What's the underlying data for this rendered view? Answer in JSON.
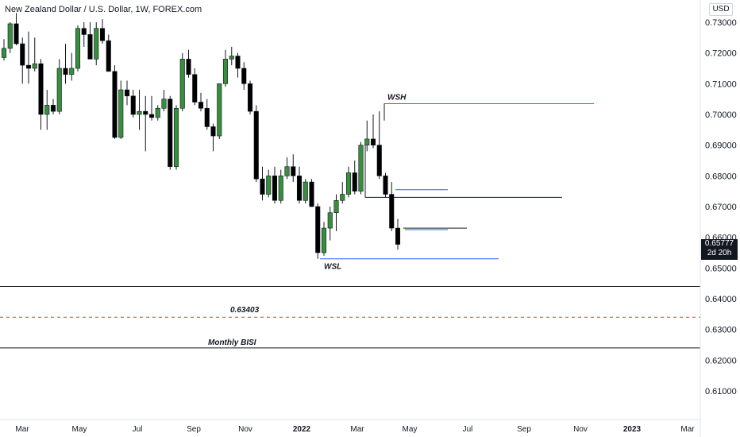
{
  "header": {
    "title": "New Zealand Dollar / U.S. Dollar, 1W, FOREX.com"
  },
  "currency_label": "USD",
  "last_price": {
    "value": "0.65777",
    "countdown": "2d 20h"
  },
  "chart_data": {
    "type": "candlestick",
    "title": "New Zealand Dollar / U.S. Dollar, 1W, FOREX.com",
    "ylim": [
      0.605,
      0.735
    ],
    "y_ticks": [
      "0.73000",
      "0.72000",
      "0.71000",
      "0.70000",
      "0.69000",
      "0.68000",
      "0.67000",
      "0.66000",
      "0.65000",
      "0.64000",
      "0.63000",
      "0.62000",
      "0.61000"
    ],
    "y_tick_values": [
      0.73,
      0.72,
      0.71,
      0.7,
      0.69,
      0.68,
      0.67,
      0.66,
      0.65,
      0.64,
      0.63,
      0.62,
      0.61
    ],
    "x_ticks": [
      {
        "label": "Mar",
        "bold": false
      },
      {
        "label": "May",
        "bold": false
      },
      {
        "label": "Jul",
        "bold": false
      },
      {
        "label": "Sep",
        "bold": false
      },
      {
        "label": "Nov",
        "bold": false
      },
      {
        "label": "2022",
        "bold": true
      },
      {
        "label": "Mar",
        "bold": false
      },
      {
        "label": "May",
        "bold": false
      },
      {
        "label": "Jul",
        "bold": false
      },
      {
        "label": "Sep",
        "bold": false
      },
      {
        "label": "Nov",
        "bold": false
      },
      {
        "label": "2023",
        "bold": true
      },
      {
        "label": "Mar",
        "bold": false
      }
    ],
    "candles": [
      [
        0.7185,
        0.7245,
        0.7175,
        0.7215
      ],
      [
        0.7215,
        0.73,
        0.72,
        0.7295
      ],
      [
        0.7295,
        0.733,
        0.7225,
        0.723
      ],
      [
        0.723,
        0.725,
        0.71,
        0.716
      ],
      [
        0.716,
        0.727,
        0.71,
        0.715
      ],
      [
        0.715,
        0.725,
        0.714,
        0.7165
      ],
      [
        0.7165,
        0.718,
        0.695,
        0.7
      ],
      [
        0.7,
        0.708,
        0.695,
        0.703
      ],
      [
        0.703,
        0.705,
        0.7,
        0.701
      ],
      [
        0.701,
        0.718,
        0.7,
        0.715
      ],
      [
        0.715,
        0.723,
        0.71,
        0.713
      ],
      [
        0.713,
        0.72,
        0.711,
        0.715
      ],
      [
        0.715,
        0.729,
        0.714,
        0.728
      ],
      [
        0.728,
        0.73,
        0.722,
        0.726
      ],
      [
        0.726,
        0.73,
        0.718,
        0.718
      ],
      [
        0.718,
        0.73,
        0.716,
        0.728
      ],
      [
        0.728,
        0.731,
        0.723,
        0.724
      ],
      [
        0.724,
        0.726,
        0.714,
        0.714
      ],
      [
        0.714,
        0.716,
        0.692,
        0.6925
      ],
      [
        0.6925,
        0.711,
        0.692,
        0.708
      ],
      [
        0.708,
        0.711,
        0.703,
        0.706
      ],
      [
        0.706,
        0.708,
        0.699,
        0.7
      ],
      [
        0.7,
        0.708,
        0.695,
        0.701
      ],
      [
        0.701,
        0.706,
        0.688,
        0.7
      ],
      [
        0.7,
        0.706,
        0.698,
        0.699
      ],
      [
        0.699,
        0.703,
        0.698,
        0.702
      ],
      [
        0.702,
        0.708,
        0.701,
        0.705
      ],
      [
        0.705,
        0.706,
        0.682,
        0.683
      ],
      [
        0.683,
        0.703,
        0.682,
        0.702
      ],
      [
        0.702,
        0.72,
        0.701,
        0.718
      ],
      [
        0.718,
        0.721,
        0.712,
        0.713
      ],
      [
        0.713,
        0.715,
        0.703,
        0.704
      ],
      [
        0.704,
        0.707,
        0.701,
        0.702
      ],
      [
        0.702,
        0.705,
        0.695,
        0.696
      ],
      [
        0.696,
        0.697,
        0.688,
        0.693
      ],
      [
        0.693,
        0.71,
        0.692,
        0.71
      ],
      [
        0.71,
        0.721,
        0.709,
        0.718
      ],
      [
        0.718,
        0.722,
        0.716,
        0.719
      ],
      [
        0.719,
        0.72,
        0.712,
        0.715
      ],
      [
        0.715,
        0.717,
        0.708,
        0.71
      ],
      [
        0.71,
        0.711,
        0.7,
        0.701
      ],
      [
        0.701,
        0.703,
        0.678,
        0.679
      ],
      [
        0.679,
        0.683,
        0.672,
        0.674
      ],
      [
        0.674,
        0.682,
        0.673,
        0.68
      ],
      [
        0.68,
        0.683,
        0.671,
        0.672
      ],
      [
        0.672,
        0.682,
        0.671,
        0.68
      ],
      [
        0.68,
        0.686,
        0.679,
        0.683
      ],
      [
        0.683,
        0.687,
        0.678,
        0.68
      ],
      [
        0.68,
        0.683,
        0.671,
        0.672
      ],
      [
        0.672,
        0.679,
        0.671,
        0.678
      ],
      [
        0.678,
        0.679,
        0.67,
        0.67
      ],
      [
        0.67,
        0.671,
        0.653,
        0.655
      ],
      [
        0.655,
        0.665,
        0.654,
        0.663
      ],
      [
        0.663,
        0.67,
        0.659,
        0.668
      ],
      [
        0.668,
        0.674,
        0.662,
        0.672
      ],
      [
        0.672,
        0.678,
        0.671,
        0.674
      ],
      [
        0.674,
        0.683,
        0.673,
        0.681
      ],
      [
        0.681,
        0.685,
        0.674,
        0.675
      ],
      [
        0.675,
        0.691,
        0.674,
        0.69
      ],
      [
        0.69,
        0.698,
        0.688,
        0.692
      ],
      [
        0.692,
        0.7,
        0.689,
        0.69
      ],
      [
        0.69,
        0.701,
        0.679,
        0.68
      ],
      [
        0.68,
        0.681,
        0.673,
        0.674
      ],
      [
        0.674,
        0.678,
        0.662,
        0.663
      ],
      [
        0.663,
        0.666,
        0.656,
        0.6577
      ]
    ],
    "levels": [
      {
        "name": "WSH",
        "value": 0.7035,
        "color": "#e53935",
        "label": "WSH"
      },
      {
        "name": "WSL",
        "value": 0.653,
        "color": "#2962ff",
        "label": "WSL"
      },
      {
        "name": "range-mid",
        "value": 0.673,
        "color": "#131722",
        "label": ""
      },
      {
        "name": "swing-low-ray",
        "value": 0.6755,
        "color": "#2962ff",
        "label": ""
      },
      {
        "name": "swing-ray-2",
        "value": 0.663,
        "color": "#131722",
        "label": ""
      },
      {
        "name": "swing-ray-3",
        "value": 0.6625,
        "color": "#2962ff",
        "label": ""
      },
      {
        "name": "horizontal-1",
        "value": 0.644,
        "color": "#131722",
        "label": ""
      },
      {
        "name": "0.63403",
        "value": 0.634,
        "color": "#e53935",
        "dashed": true,
        "label": "0.63403"
      },
      {
        "name": "monthly-bisi",
        "value": 0.624,
        "color": "#131722",
        "label": "Monthly BISI"
      }
    ]
  },
  "colors": {
    "up": "#388e3c",
    "down": "#000000",
    "wick": "#131722"
  }
}
